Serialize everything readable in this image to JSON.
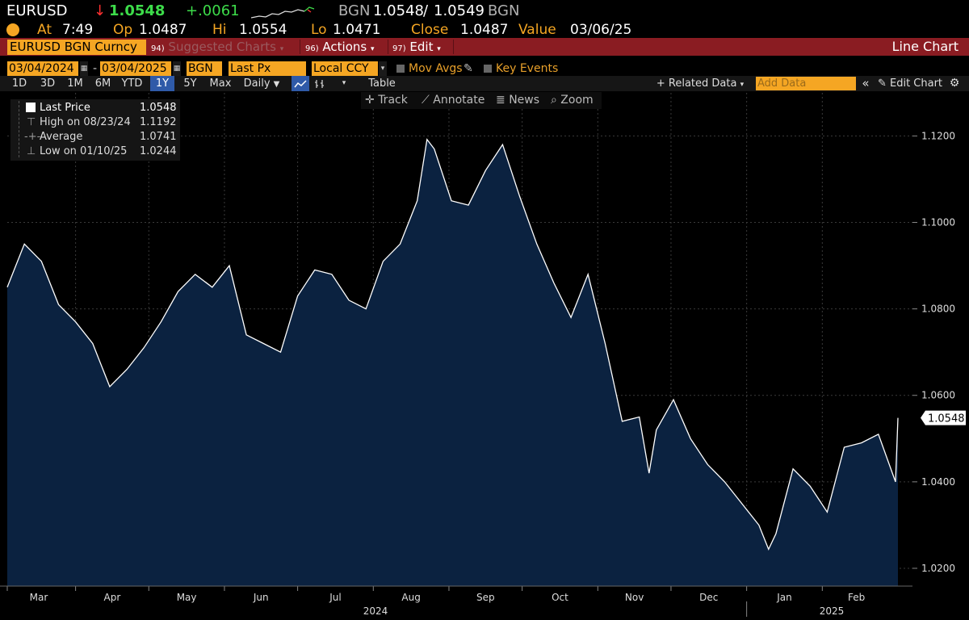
{
  "ticker": {
    "symbol": "EURUSD",
    "direction_arrow": "↓",
    "last": "1.0548",
    "change": "+.0061",
    "source": "BGN",
    "bid": "1.0548",
    "slash": "/",
    "ask": "1.0549",
    "source2": "BGN"
  },
  "quote": {
    "at_label": "At",
    "time": "7:49",
    "op_label": "Op",
    "op": "1.0487",
    "hi_label": "Hi",
    "hi": "1.0554",
    "lo_label": "Lo",
    "lo": "1.0471",
    "close_label": "Close",
    "close": "1.0487",
    "value_label": "Value",
    "value_date": "03/06/25"
  },
  "menu": {
    "security": "EURUSD BGN Curncy",
    "suggested_num": "94)",
    "suggested": "Suggested Charts",
    "actions_num": "96)",
    "actions": "Actions",
    "edit_num": "97)",
    "edit": "Edit",
    "chart_type": "Line Chart"
  },
  "fields": {
    "start_date": "03/04/2024",
    "dash": "-",
    "end_date": "03/04/2025",
    "pricing_source": "BGN",
    "price_field": "Last Px",
    "currency": "Local CCY",
    "mov_avgs": "Mov Avgs",
    "key_events": "Key Events"
  },
  "ranges": [
    "1D",
    "3D",
    "1M",
    "6M",
    "YTD",
    "1Y",
    "5Y",
    "Max"
  ],
  "active_range": "1Y",
  "frequency": "Daily",
  "table_label": "Table",
  "related_data": "+ Related Data",
  "add_data_placeholder": "Add Data",
  "edit_chart": "Edit Chart",
  "tools": {
    "track": "Track",
    "annotate": "Annotate",
    "news": "News",
    "zoom": "Zoom"
  },
  "legend": {
    "last_label": "Last Price",
    "last_value": "1.0548",
    "high_label": "High on 08/23/24",
    "high_value": "1.1192",
    "avg_label": "Average",
    "avg_value": "1.0741",
    "low_label": "Low on 01/10/25",
    "low_value": "1.0244"
  },
  "last_price_tag": "1.0548",
  "colors": {
    "accent_orange": "#f5a623",
    "menu_red": "#8a1c22",
    "positive_green": "#3ddc4a",
    "negative_red": "#ff3030",
    "area_fill": "#0b2240",
    "line": "#ffffff"
  },
  "chart_data": {
    "type": "area",
    "title": "",
    "xlabel": "",
    "ylabel": "",
    "ylim": [
      1.0185,
      1.1225
    ],
    "yticks": [
      1.02,
      1.04,
      1.06,
      1.08,
      1.1,
      1.12
    ],
    "ytick_labels": [
      "1.0200",
      "1.0400",
      "1.0600",
      "1.0800",
      "1.1000",
      "1.1200"
    ],
    "x_months": [
      "Mar",
      "Apr",
      "May",
      "Jun",
      "Jul",
      "Aug",
      "Sep",
      "Oct",
      "Nov",
      "Dec",
      "Jan",
      "Feb"
    ],
    "x_years": [
      "2024",
      "2025"
    ],
    "x": [
      "2024-03-04",
      "2024-03-11",
      "2024-03-18",
      "2024-03-25",
      "2024-04-01",
      "2024-04-08",
      "2024-04-15",
      "2024-04-22",
      "2024-04-29",
      "2024-05-06",
      "2024-05-13",
      "2024-05-20",
      "2024-05-27",
      "2024-06-03",
      "2024-06-10",
      "2024-06-17",
      "2024-06-24",
      "2024-07-01",
      "2024-07-08",
      "2024-07-15",
      "2024-07-22",
      "2024-07-29",
      "2024-08-05",
      "2024-08-12",
      "2024-08-19",
      "2024-08-23",
      "2024-08-26",
      "2024-09-02",
      "2024-09-09",
      "2024-09-16",
      "2024-09-23",
      "2024-09-30",
      "2024-10-07",
      "2024-10-14",
      "2024-10-21",
      "2024-10-28",
      "2024-11-04",
      "2024-11-11",
      "2024-11-18",
      "2024-11-22",
      "2024-11-25",
      "2024-12-02",
      "2024-12-09",
      "2024-12-16",
      "2024-12-23",
      "2024-12-30",
      "2025-01-06",
      "2025-01-10",
      "2025-01-13",
      "2025-01-20",
      "2025-01-27",
      "2025-02-03",
      "2025-02-10",
      "2025-02-17",
      "2025-02-24",
      "2025-03-03",
      "2025-03-04"
    ],
    "series": [
      {
        "values": [
          1.085,
          1.095,
          1.091,
          1.081,
          1.077,
          1.072,
          1.062,
          1.066,
          1.071,
          1.077,
          1.084,
          1.088,
          1.085,
          1.09,
          1.074,
          1.072,
          1.07,
          1.083,
          1.089,
          1.088,
          1.082,
          1.08,
          1.091,
          1.095,
          1.105,
          1.1192,
          1.117,
          1.105,
          1.104,
          1.112,
          1.118,
          1.106,
          1.095,
          1.086,
          1.078,
          1.088,
          1.072,
          1.054,
          1.055,
          1.042,
          1.052,
          1.059,
          1.05,
          1.044,
          1.04,
          1.035,
          1.03,
          1.0244,
          1.028,
          1.043,
          1.039,
          1.033,
          1.048,
          1.049,
          1.051,
          1.04,
          1.0548
        ]
      }
    ]
  }
}
